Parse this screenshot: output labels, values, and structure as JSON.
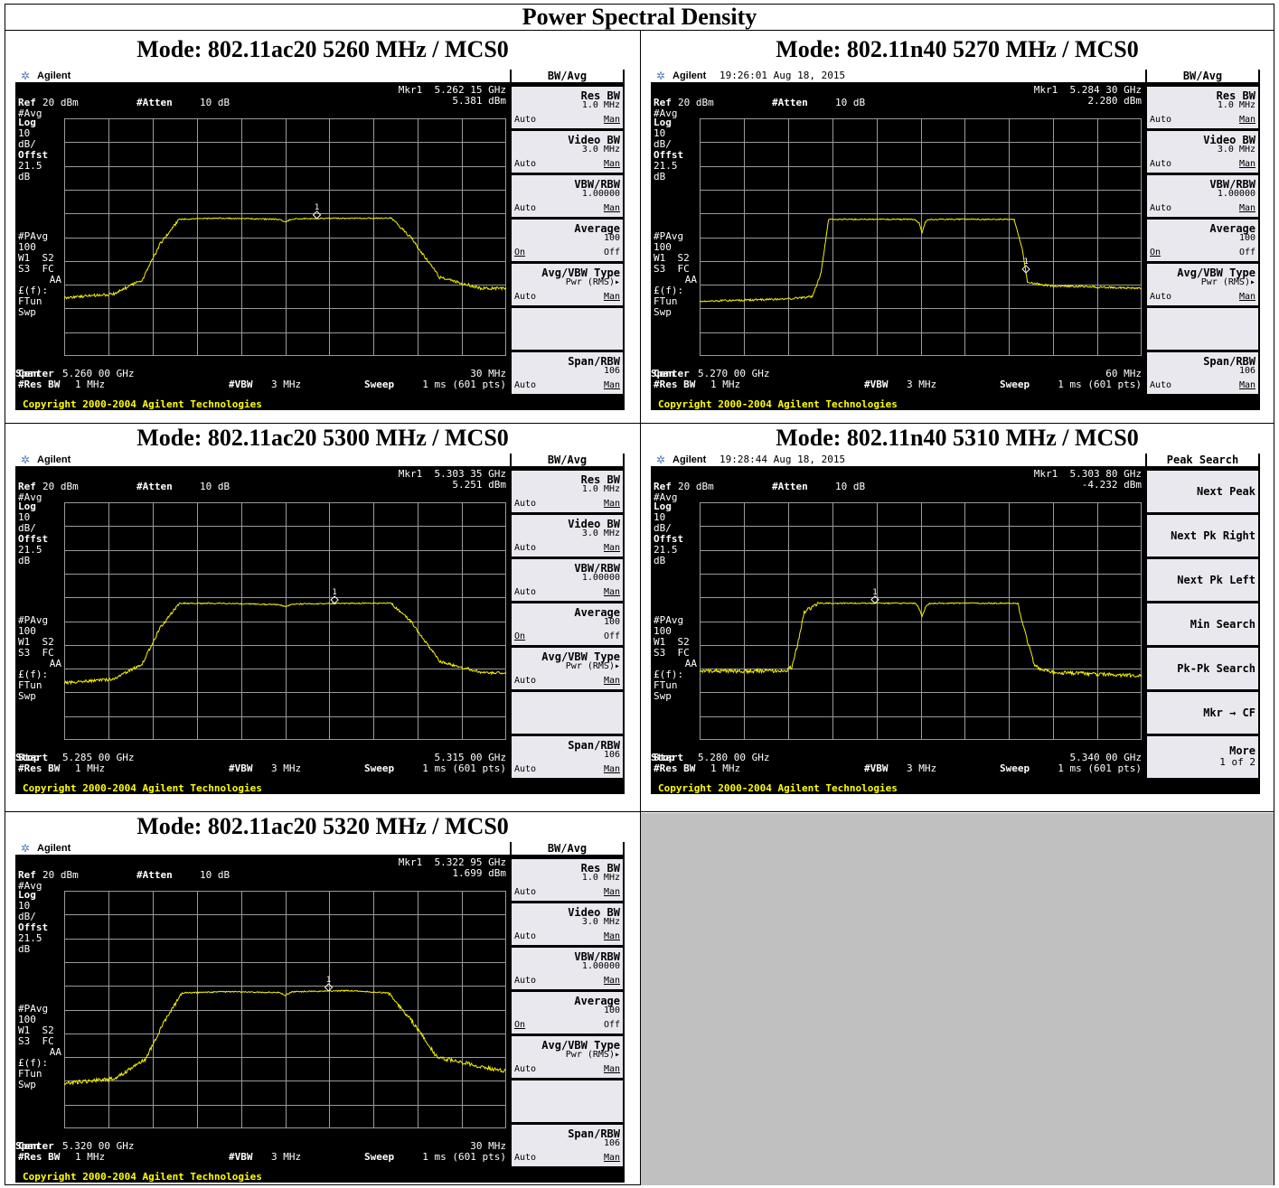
{
  "document": {
    "title": "Power Spectral Density"
  },
  "common": {
    "brand": "Agilent",
    "ref": "Ref",
    "ref_val": "20 dBm",
    "atten": "#Atten",
    "atten_val": "10 dB",
    "avg_mode": "#Avg",
    "log": "Log",
    "scale": "10",
    "scale_unit": "dB/",
    "offst": "Offst",
    "offst_val": "21.5",
    "offst_unit": "dB",
    "pavg": "#PAvg",
    "pavg_val": "100",
    "w1s2": "W1  S2",
    "s3fc": "S3  FC",
    "aa": "AA",
    "ff": "£(f):",
    "ftun": "FTun",
    "swp": "Swp",
    "res_bw": "#Res BW",
    "res_bw_val": "1 MHz",
    "vbw": "#VBW",
    "vbw_val": "3 MHz",
    "sweep": "Sweep",
    "sweep_val": "1 ms (601 pts)",
    "copyright": "Copyright 2000-2004 Agilent Technologies",
    "marker_label": "1",
    "softkeys_bw": {
      "header": "BW/Avg",
      "keys": [
        {
          "title": "Res BW",
          "value": "1.0 MHz",
          "auto": "Auto",
          "man": "Man"
        },
        {
          "title": "Video BW",
          "value": "3.0 MHz",
          "auto": "Auto",
          "man": "Man"
        },
        {
          "title": "VBW/RBW",
          "value": "1.00000",
          "auto": "Auto",
          "man": "Man"
        },
        {
          "title": "Average",
          "value": "100",
          "auto": "On",
          "man": "Off"
        },
        {
          "title": "Avg/VBW Type",
          "value": "Pwr (RMS)▸",
          "auto": "Auto",
          "man": "Man"
        },
        {
          "title": "",
          "value": "",
          "auto": "",
          "man": ""
        },
        {
          "title": "Span/RBW",
          "value": "106",
          "auto": "Auto",
          "man": "Man"
        }
      ]
    },
    "softkeys_peak": {
      "header": "Peak Search",
      "keys": [
        "Next Peak",
        "Next Pk Right",
        "Next Pk Left",
        "Min Search",
        "Pk-Pk Search",
        "Mkr → CF"
      ],
      "more": "More",
      "more_page": "1 of 2"
    }
  },
  "plots": [
    {
      "mode_title": "Mode: 802.11ac20  5260 MHz / MCS0",
      "timestamp": "",
      "mkr": "Mkr1  5.262 15 GHz",
      "mkr_val": "5.381 dBm",
      "left_label": "Center",
      "left_val": "5.260 00 GHz",
      "right_label": "Span",
      "right_val": "30 MHz",
      "softkeys": "bw"
    },
    {
      "mode_title": "Mode: 802.11n40  5270 MHz / MCS0",
      "timestamp": "19:26:01  Aug 18, 2015",
      "mkr": "Mkr1  5.284 30 GHz",
      "mkr_val": "2.280 dBm",
      "left_label": "Center",
      "left_val": "5.270 00 GHz",
      "right_label": "Span",
      "right_val": "60 MHz",
      "softkeys": "bw"
    },
    {
      "mode_title": "Mode: 802.11ac20 5300 MHz / MCS0",
      "timestamp": "",
      "mkr": "Mkr1  5.303 35 GHz",
      "mkr_val": "5.251 dBm",
      "left_label": "Start",
      "left_val": "5.285 00 GHz",
      "right_label": "Stop",
      "right_val": "5.315 00 GHz",
      "softkeys": "bw"
    },
    {
      "mode_title": "Mode: 802.11n40 5310 MHz / MCS0",
      "timestamp": "19:28:44  Aug 18, 2015",
      "mkr": "Mkr1  5.303 80 GHz",
      "mkr_val": "-4.232 dBm",
      "left_label": "Start",
      "left_val": "5.280 00 GHz",
      "right_label": "Stop",
      "right_val": "5.340 00 GHz",
      "softkeys": "peak"
    },
    {
      "mode_title": "Mode: 802.11ac20 5320 MHz / MCS0",
      "timestamp": "",
      "mkr": "Mkr1  5.322 95 GHz",
      "mkr_val": "1.699 dBm",
      "left_label": "Center",
      "left_val": "5.320 00 GHz",
      "right_label": "Span",
      "right_val": "30 MHz",
      "softkeys": "bw"
    }
  ],
  "chart_data": [
    {
      "type": "line",
      "ylabel": "dBm",
      "ylim": [
        -80,
        20
      ],
      "xlim": [
        5.245,
        5.275
      ],
      "x_unit": "GHz",
      "series": [
        {
          "values": [
            [
              5.245,
              -55.5
            ],
            [
              5.2483,
              -54
            ],
            [
              5.2503,
              -48
            ],
            [
              5.2515,
              -33
            ],
            [
              5.2528,
              -22.5
            ],
            [
              5.2555,
              -22
            ],
            [
              5.2596,
              -22.5
            ],
            [
              5.26,
              -23.5
            ],
            [
              5.2605,
              -22.3
            ],
            [
              5.2643,
              -22
            ],
            [
              5.2672,
              -22
            ],
            [
              5.2685,
              -30
            ],
            [
              5.2705,
              -47
            ],
            [
              5.2733,
              -51.5
            ],
            [
              5.275,
              -51.5
            ]
          ]
        }
      ],
      "marker": [
        5.26215,
        5.381
      ],
      "flat_top": [
        5.2528,
        5.2672
      ],
      "dip": 5.26,
      "noise": 0.6
    },
    {
      "type": "line",
      "ylabel": "dBm",
      "ylim": [
        -80,
        20
      ],
      "xlim": [
        5.24,
        5.3
      ],
      "x_unit": "GHz",
      "series": [
        {
          "values": [
            [
              5.24,
              -57
            ],
            [
              5.252,
              -56
            ],
            [
              5.2553,
              -55
            ],
            [
              5.2565,
              -45
            ],
            [
              5.2575,
              -22.5
            ],
            [
              5.2692,
              -22.5
            ],
            [
              5.2698,
              -24
            ],
            [
              5.2702,
              -28
            ],
            [
              5.2706,
              -24
            ],
            [
              5.271,
              -22.5
            ],
            [
              5.2827,
              -22.5
            ],
            [
              5.2838,
              -35
            ],
            [
              5.2845,
              -49
            ],
            [
              5.2875,
              -50.5
            ],
            [
              5.3,
              -51.5
            ]
          ]
        }
      ],
      "marker": [
        5.2843,
        2.28
      ],
      "flat_top": [
        5.2575,
        5.2827
      ],
      "dip": 5.2702,
      "noise": 0.4
    },
    {
      "type": "line",
      "ylabel": "dBm",
      "ylim": [
        -80,
        20
      ],
      "xlim": [
        5.285,
        5.315
      ],
      "x_unit": "GHz",
      "series": [
        {
          "values": [
            [
              5.285,
              -56
            ],
            [
              5.2883,
              -54.5
            ],
            [
              5.2903,
              -48
            ],
            [
              5.2915,
              -33
            ],
            [
              5.2928,
              -22.5
            ],
            [
              5.2955,
              -22.5
            ],
            [
              5.2996,
              -23
            ],
            [
              5.3,
              -24
            ],
            [
              5.3005,
              -22.8
            ],
            [
              5.3043,
              -22.5
            ],
            [
              5.3072,
              -22.5
            ],
            [
              5.3085,
              -30
            ],
            [
              5.3105,
              -47
            ],
            [
              5.3133,
              -51.5
            ],
            [
              5.315,
              -52
            ]
          ]
        }
      ],
      "marker": [
        5.30335,
        5.251
      ],
      "flat_top": [
        5.2928,
        5.3072
      ],
      "dip": 5.3,
      "noise": 0.6
    },
    {
      "type": "line",
      "ylabel": "dBm",
      "ylim": [
        -80,
        20
      ],
      "xlim": [
        5.28,
        5.34
      ],
      "x_unit": "GHz",
      "series": [
        {
          "values": [
            [
              5.28,
              -51
            ],
            [
              5.2915,
              -51
            ],
            [
              5.2925,
              -49.5
            ],
            [
              5.2933,
              -40
            ],
            [
              5.2942,
              -26
            ],
            [
              5.2962,
              -22.5
            ],
            [
              5.3092,
              -22.5
            ],
            [
              5.3097,
              -24
            ],
            [
              5.3102,
              -28
            ],
            [
              5.3107,
              -24
            ],
            [
              5.3112,
              -22.5
            ],
            [
              5.3232,
              -22.5
            ],
            [
              5.3242,
              -35
            ],
            [
              5.3255,
              -49
            ],
            [
              5.3275,
              -51.5
            ],
            [
              5.34,
              -53
            ]
          ]
        }
      ],
      "marker": [
        5.3038,
        -4.232
      ],
      "flat_top": [
        5.2962,
        5.3232
      ],
      "dip": 5.3102,
      "noise": 0.8
    },
    {
      "type": "line",
      "ylabel": "dBm",
      "ylim": [
        -80,
        20
      ],
      "xlim": [
        5.305,
        5.335
      ],
      "x_unit": "GHz",
      "series": [
        {
          "values": [
            [
              5.305,
              -61
            ],
            [
              5.3085,
              -59
            ],
            [
              5.3105,
              -51
            ],
            [
              5.3118,
              -35
            ],
            [
              5.313,
              -23
            ],
            [
              5.3158,
              -22.5
            ],
            [
              5.3196,
              -22.8
            ],
            [
              5.32,
              -24
            ],
            [
              5.3205,
              -22.5
            ],
            [
              5.3243,
              -22
            ],
            [
              5.327,
              -23
            ],
            [
              5.3285,
              -34
            ],
            [
              5.3303,
              -50
            ],
            [
              5.3333,
              -54
            ],
            [
              5.335,
              -56
            ]
          ]
        }
      ],
      "marker": [
        5.32295,
        1.699
      ],
      "flat_top": [
        5.313,
        5.327
      ],
      "dip": 5.32,
      "noise": 0.8
    }
  ]
}
